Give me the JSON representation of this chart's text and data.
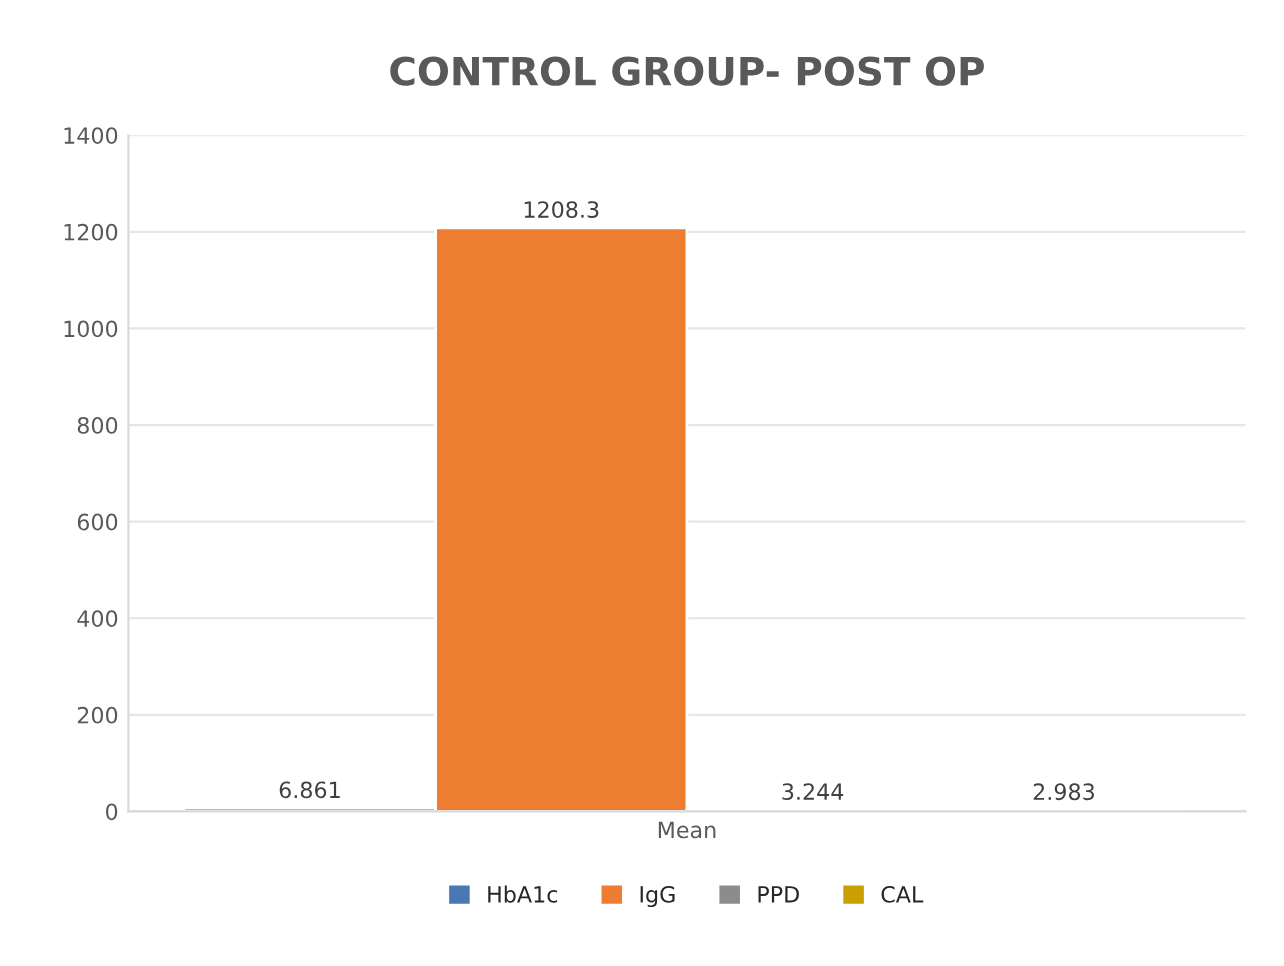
{
  "chart_data": {
    "type": "bar",
    "title": "CONTROL GROUP- POST OP",
    "categories": [
      "Mean"
    ],
    "series": [
      {
        "name": "HbA1c",
        "color": "#4a78b4",
        "values": [
          6.861
        ]
      },
      {
        "name": "IgG",
        "color": "#ed7d31",
        "values": [
          1208.3
        ]
      },
      {
        "name": "PPD",
        "color": "#8c8c8c",
        "values": [
          3.244
        ]
      },
      {
        "name": "CAL",
        "color": "#c9a000",
        "values": [
          2.983
        ]
      }
    ],
    "ylim": [
      0,
      1400
    ],
    "yticks": [
      0,
      200,
      400,
      600,
      800,
      1000,
      1200,
      1400
    ],
    "grid": "y",
    "legend": "bottom",
    "data_labels": true
  }
}
